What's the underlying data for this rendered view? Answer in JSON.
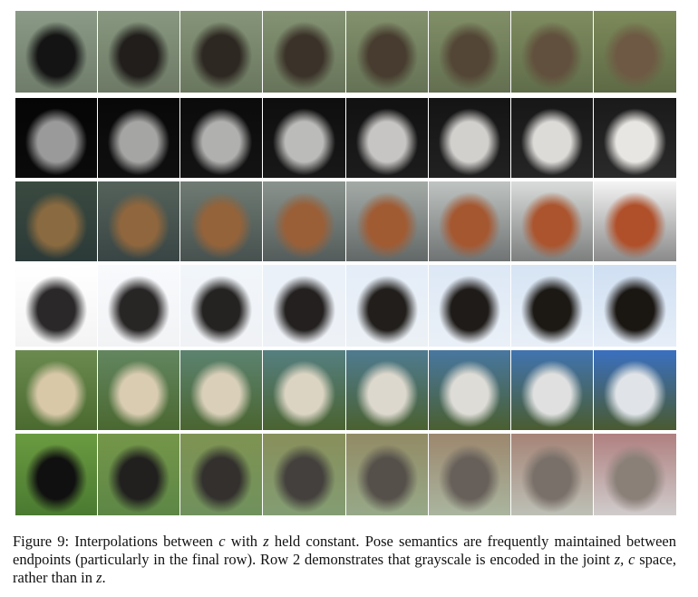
{
  "figure": {
    "rows": 6,
    "columns": 8,
    "caption": [
      {
        "text": "Figure 9: Interpolations between "
      },
      {
        "text": "c",
        "italic": true
      },
      {
        "text": " with "
      },
      {
        "text": "z",
        "italic": true
      },
      {
        "text": " held constant. Pose semantics are frequently maintained between endpoints (particularly in the final row). Row 2 demonstrates that grayscale is encoded in the joint "
      },
      {
        "text": "z, c",
        "italic": true
      },
      {
        "text": " space, rather than in "
      },
      {
        "text": "z",
        "italic": true
      },
      {
        "text": "."
      }
    ]
  }
}
